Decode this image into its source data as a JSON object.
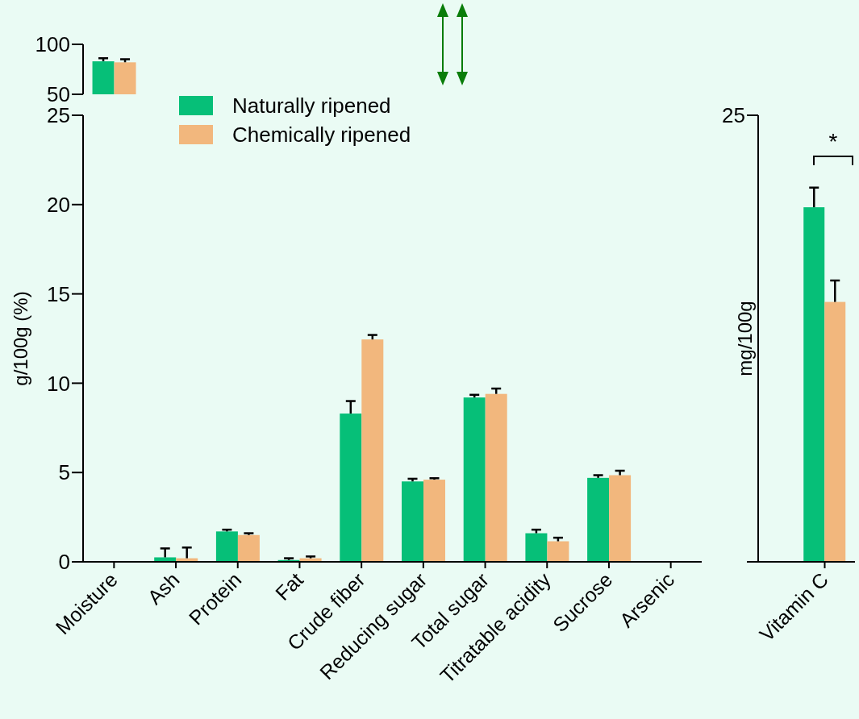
{
  "chart_data": [
    {
      "type": "bar",
      "categories": [
        null
      ],
      "ylim": [
        50,
        100
      ],
      "yticks": [
        50,
        100
      ],
      "tick_labels": "y",
      "series": [
        {
          "color": "#06bf78",
          "values": [
            83
          ],
          "errors": [
            3
          ]
        },
        {
          "color": "#f2b77d",
          "values": [
            82
          ],
          "errors": [
            3
          ]
        }
      ]
    },
    {
      "type": "bar",
      "ylabel": "g/100g (%)",
      "categories": [
        "Moisture",
        "Ash",
        "Protein",
        "Fat",
        "Crude fiber",
        "Reducing sugar",
        "Total sugar",
        "Titratable acidity",
        "Sucrose",
        "Arsenic"
      ],
      "ylim": [
        0,
        25
      ],
      "yticks": [
        0,
        5,
        10,
        15,
        20,
        25
      ],
      "legend": "top left",
      "series": [
        {
          "name": "Naturally ripened",
          "color": "#06bf78",
          "values": [
            null,
            0.25,
            1.7,
            0.1,
            8.3,
            4.5,
            9.2,
            1.6,
            4.7,
            null
          ],
          "errors": [
            null,
            0.5,
            0.1,
            0.1,
            0.7,
            0.15,
            0.15,
            0.2,
            0.15,
            null
          ]
        },
        {
          "name": "Chemically ripened",
          "color": "#f2b77d",
          "values": [
            null,
            0.2,
            1.5,
            0.2,
            12.45,
            4.6,
            9.4,
            1.15,
            4.85,
            null
          ],
          "errors": [
            null,
            0.6,
            0.1,
            0.1,
            0.25,
            0.08,
            0.3,
            0.2,
            0.25,
            null
          ]
        }
      ]
    },
    {
      "type": "bar",
      "ylabel": "mg/100g",
      "categories": [
        "Vitamin C"
      ],
      "ylim": [
        0,
        25
      ],
      "yticks": [
        {
          "value": 0,
          "label": null
        },
        25
      ],
      "annotations": [
        "*"
      ],
      "series": [
        {
          "color": "#06bf78",
          "values": [
            19.85
          ],
          "errors": [
            1.1
          ]
        },
        {
          "color": "#f2b77d",
          "values": [
            14.55
          ],
          "errors": [
            1.2
          ]
        }
      ]
    }
  ]
}
